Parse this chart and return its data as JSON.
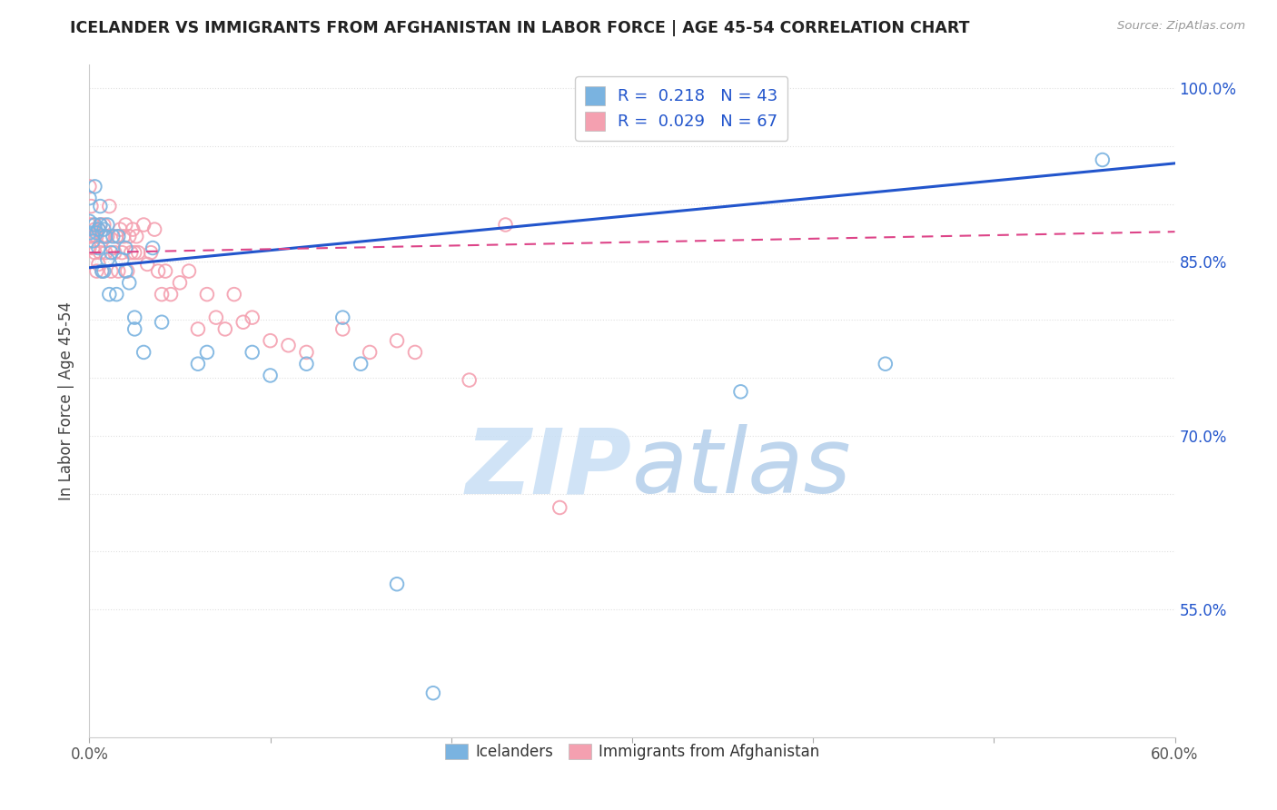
{
  "title": "ICELANDER VS IMMIGRANTS FROM AFGHANISTAN IN LABOR FORCE | AGE 45-54 CORRELATION CHART",
  "source": "Source: ZipAtlas.com",
  "ylabel": "In Labor Force | Age 45-54",
  "xmin": 0.0,
  "xmax": 0.6,
  "ymin": 0.44,
  "ymax": 1.02,
  "yticks": [
    0.55,
    0.7,
    0.85,
    1.0
  ],
  "ytick_labels": [
    "55.0%",
    "70.0%",
    "85.0%",
    "100.0%"
  ],
  "xticks": [
    0.0,
    0.1,
    0.2,
    0.3,
    0.4,
    0.5,
    0.6
  ],
  "xtick_labels": [
    "0.0%",
    "",
    "",
    "",
    "",
    "",
    "60.0%"
  ],
  "legend_blue_text": "R =  0.218   N = 43",
  "legend_pink_text": "R =  0.029   N = 67",
  "blue_scatter_color": "#7ab3e0",
  "pink_scatter_color": "#f4a0b0",
  "trendline_blue_color": "#2255cc",
  "trendline_pink_color": "#dd4488",
  "axis_label_color": "#2255cc",
  "watermark_zip_color": "#c8dff5",
  "watermark_atlas_color": "#a8c8e8",
  "icelanders_x": [
    0.0,
    0.0,
    0.0,
    0.002,
    0.003,
    0.003,
    0.004,
    0.005,
    0.005,
    0.006,
    0.006,
    0.007,
    0.008,
    0.008,
    0.009,
    0.01,
    0.01,
    0.011,
    0.012,
    0.013,
    0.015,
    0.016,
    0.018,
    0.02,
    0.02,
    0.022,
    0.025,
    0.025,
    0.03,
    0.035,
    0.04,
    0.06,
    0.065,
    0.09,
    0.1,
    0.12,
    0.14,
    0.15,
    0.17,
    0.19,
    0.36,
    0.44,
    0.56
  ],
  "icelanders_y": [
    0.875,
    0.885,
    0.905,
    0.868,
    0.882,
    0.915,
    0.875,
    0.862,
    0.878,
    0.882,
    0.898,
    0.842,
    0.842,
    0.878,
    0.872,
    0.852,
    0.882,
    0.822,
    0.858,
    0.872,
    0.822,
    0.872,
    0.852,
    0.842,
    0.862,
    0.832,
    0.792,
    0.802,
    0.772,
    0.862,
    0.798,
    0.762,
    0.772,
    0.772,
    0.752,
    0.762,
    0.802,
    0.762,
    0.572,
    0.478,
    0.738,
    0.762,
    0.938
  ],
  "afghans_x": [
    0.0,
    0.0,
    0.0,
    0.0,
    0.001,
    0.001,
    0.002,
    0.002,
    0.003,
    0.003,
    0.004,
    0.004,
    0.005,
    0.005,
    0.006,
    0.006,
    0.007,
    0.007,
    0.008,
    0.008,
    0.009,
    0.009,
    0.01,
    0.011,
    0.012,
    0.013,
    0.014,
    0.015,
    0.016,
    0.017,
    0.018,
    0.019,
    0.02,
    0.021,
    0.022,
    0.023,
    0.024,
    0.025,
    0.026,
    0.027,
    0.03,
    0.032,
    0.034,
    0.036,
    0.038,
    0.04,
    0.042,
    0.045,
    0.05,
    0.055,
    0.06,
    0.065,
    0.07,
    0.075,
    0.08,
    0.085,
    0.09,
    0.1,
    0.11,
    0.12,
    0.14,
    0.155,
    0.17,
    0.18,
    0.21,
    0.23,
    0.26
  ],
  "afghans_y": [
    0.862,
    0.872,
    0.882,
    0.915,
    0.872,
    0.898,
    0.862,
    0.882,
    0.858,
    0.878,
    0.842,
    0.872,
    0.848,
    0.878,
    0.858,
    0.882,
    0.842,
    0.872,
    0.882,
    0.872,
    0.858,
    0.872,
    0.872,
    0.898,
    0.842,
    0.862,
    0.858,
    0.872,
    0.842,
    0.878,
    0.858,
    0.872,
    0.882,
    0.842,
    0.872,
    0.858,
    0.878,
    0.858,
    0.872,
    0.858,
    0.882,
    0.848,
    0.858,
    0.878,
    0.842,
    0.822,
    0.842,
    0.822,
    0.832,
    0.842,
    0.792,
    0.822,
    0.802,
    0.792,
    0.822,
    0.798,
    0.802,
    0.782,
    0.778,
    0.772,
    0.792,
    0.772,
    0.782,
    0.772,
    0.748,
    0.882,
    0.638
  ],
  "blue_trendline_x": [
    0.0,
    0.6
  ],
  "blue_trendline_y": [
    0.845,
    0.935
  ],
  "pink_trendline_x": [
    0.0,
    0.6
  ],
  "pink_trendline_y": [
    0.858,
    0.876
  ],
  "grid_color": "#e0e0e0",
  "grid_y_dotted_values": [
    0.55,
    0.6,
    0.65,
    0.7,
    0.75,
    0.8,
    0.85,
    0.9,
    0.95,
    1.0
  ]
}
